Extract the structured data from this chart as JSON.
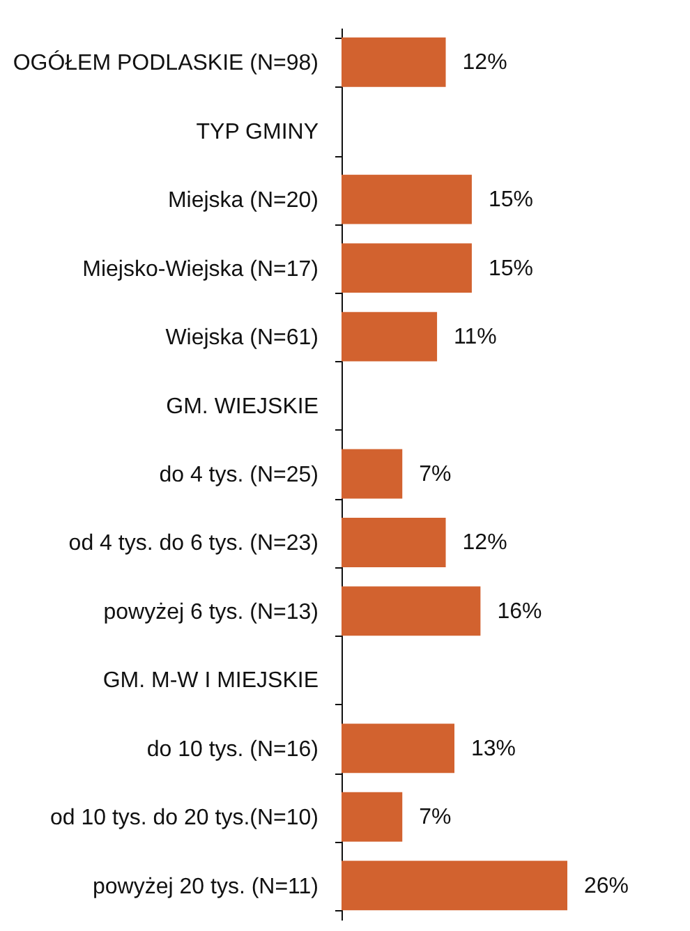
{
  "chart_data": {
    "type": "bar",
    "orientation": "horizontal",
    "categories": [
      "OGÓŁEM PODLASKIE (N=98)",
      "TYP GMINY",
      "Miejska (N=20)",
      "Miejsko-Wiejska (N=17)",
      "Wiejska (N=61)",
      "GM. WIEJSKIE",
      "do 4 tys. (N=25)",
      "od 4 tys. do 6 tys. (N=23)",
      "powyżej 6 tys. (N=13)",
      "GM. M-W I MIEJSKIE",
      "do 10 tys. (N=16)",
      "od 10 tys. do 20 tys.(N=10)",
      "powyżej 20 tys. (N=11)"
    ],
    "values": [
      12,
      null,
      15,
      15,
      11,
      null,
      7,
      12,
      16,
      null,
      13,
      7,
      26
    ],
    "value_labels": [
      "12%",
      null,
      "15%",
      "15%",
      "11%",
      null,
      "7%",
      "12%",
      "16%",
      null,
      "13%",
      "7%",
      "26%"
    ],
    "color": "#d2622f"
  }
}
